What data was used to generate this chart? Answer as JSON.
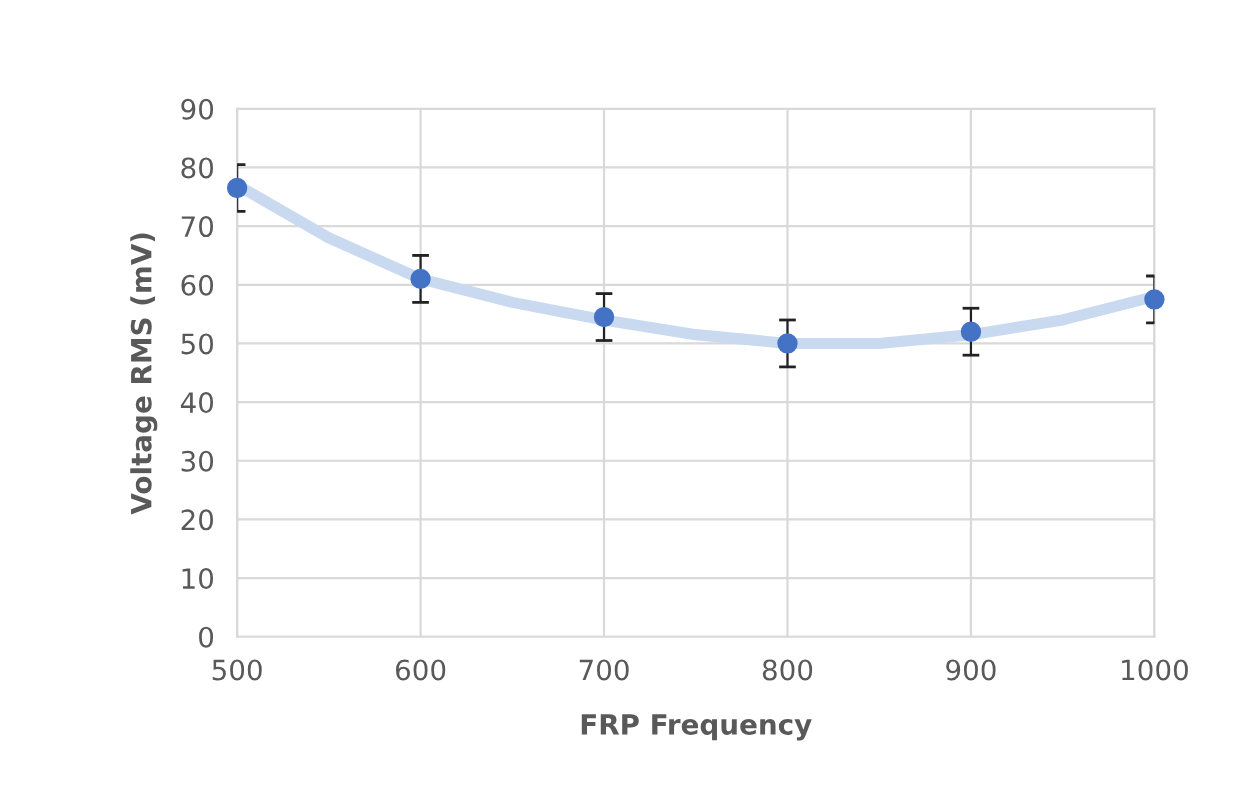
{
  "chart_data": {
    "type": "scatter",
    "xlabel": "FRP Frequency",
    "ylabel": "Voltage RMS (mV)",
    "xlim": [
      500,
      1000
    ],
    "xticks": [
      500,
      600,
      700,
      800,
      900,
      1000
    ],
    "ylim": [
      0,
      90
    ],
    "yticks": [
      0,
      10,
      20,
      30,
      40,
      50,
      60,
      70,
      80,
      90
    ],
    "grid": true,
    "marker": "circle",
    "series": [
      {
        "type": "line",
        "marker": "none",
        "color": "#c9d9f0",
        "x": [
          500,
          550,
          600,
          650,
          700,
          750,
          800,
          850,
          900,
          950,
          1000
        ],
        "values": [
          77,
          68,
          61,
          57,
          54,
          51.5,
          50,
          50,
          51.5,
          54,
          58
        ]
      },
      {
        "color": "#4472c4",
        "x": [
          500,
          600,
          700,
          800,
          900,
          1000
        ],
        "values": [
          76.5,
          61,
          54.5,
          50,
          52,
          57.5
        ],
        "errors": [
          4,
          4,
          4,
          4,
          4,
          4
        ]
      }
    ]
  }
}
